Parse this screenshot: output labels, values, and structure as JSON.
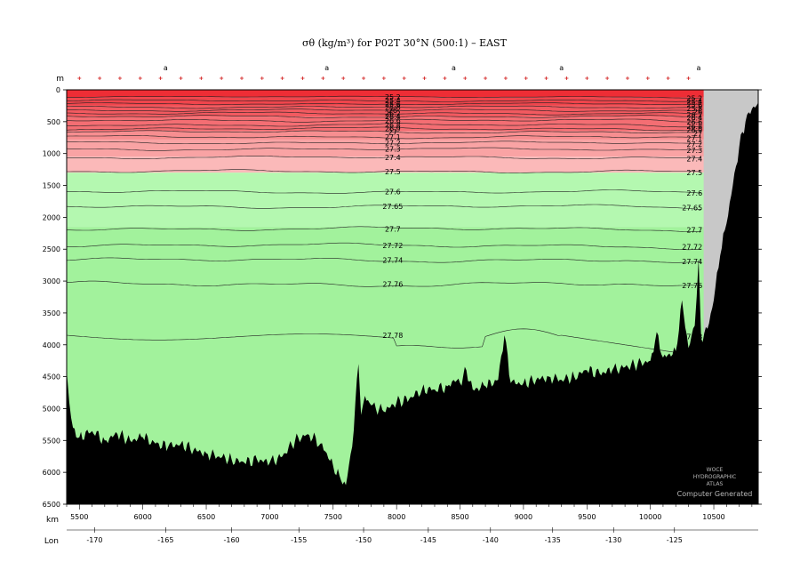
{
  "chart_data": {
    "type": "area",
    "title": "σθ (kg/m³) for P02T 30°N (500:1) – EAST",
    "ylabel": "m",
    "xlabel": "km",
    "lon_label": "Lon",
    "xlim": [
      5400,
      10850
    ],
    "ylim": [
      6500,
      0
    ],
    "x_ticks": [
      5500,
      6000,
      6500,
      7000,
      7500,
      8000,
      8500,
      9000,
      9500,
      10000,
      10500
    ],
    "y_ticks": [
      0,
      500,
      1000,
      1500,
      2000,
      2500,
      3000,
      3500,
      4000,
      4500,
      5000,
      5500,
      6000,
      6500
    ],
    "lon_ticks": [
      {
        "lon": -170,
        "km": 5620
      },
      {
        "lon": -165,
        "km": 6180
      },
      {
        "lon": -160,
        "km": 6700
      },
      {
        "lon": -155,
        "km": 7230
      },
      {
        "lon": -150,
        "km": 7740
      },
      {
        "lon": -145,
        "km": 8250
      },
      {
        "lon": -140,
        "km": 8740
      },
      {
        "lon": -135,
        "km": 9230
      },
      {
        "lon": -130,
        "km": 9710
      },
      {
        "lon": -125,
        "km": 10190
      }
    ],
    "top_labels": [
      {
        "text": "a",
        "km": 6180
      },
      {
        "text": "a",
        "km": 7450
      },
      {
        "text": "a",
        "km": 8450
      },
      {
        "text": "a",
        "km": 9300
      },
      {
        "text": "a",
        "km": 10380
      }
    ],
    "bands": [
      {
        "top": 0,
        "bottom": 120,
        "color": "#ee2d35"
      },
      {
        "top": 120,
        "bottom": 250,
        "color": "#f0454c"
      },
      {
        "top": 250,
        "bottom": 420,
        "color": "#f25a60"
      },
      {
        "top": 420,
        "bottom": 650,
        "color": "#f46e73"
      },
      {
        "top": 650,
        "bottom": 780,
        "color": "#f78e90"
      },
      {
        "top": 780,
        "bottom": 1050,
        "color": "#f9a3a4"
      },
      {
        "top": 1050,
        "bottom": 1300,
        "color": "#fbb9b9"
      },
      {
        "top": 1300,
        "bottom": 2150,
        "color": "#b4f8b0"
      },
      {
        "top": 2150,
        "bottom": 6500,
        "color": "#a2f29c"
      }
    ],
    "contours": [
      {
        "label": "25.2",
        "depth": 110,
        "amp": 10
      },
      {
        "label": "25.4",
        "depth": 170,
        "amp": 15
      },
      {
        "label": "25.6",
        "depth": 220,
        "amp": 15
      },
      {
        "label": "25.8",
        "depth": 270,
        "amp": 18
      },
      {
        "label": "26",
        "depth": 320,
        "amp": 18
      },
      {
        "label": "26.2",
        "depth": 370,
        "amp": 20
      },
      {
        "label": "26.4",
        "depth": 420,
        "amp": 20
      },
      {
        "label": "26.6",
        "depth": 480,
        "amp": 22
      },
      {
        "label": "26.8",
        "depth": 550,
        "amp": 22
      },
      {
        "label": "26.9",
        "depth": 610,
        "amp": 22
      },
      {
        "label": "27",
        "depth": 660,
        "amp": 22
      },
      {
        "label": "27.1",
        "depth": 740,
        "amp": 22
      },
      {
        "label": "27.2",
        "depth": 830,
        "amp": 20
      },
      {
        "label": "27.3",
        "depth": 930,
        "amp": 20
      },
      {
        "label": "27.4",
        "depth": 1060,
        "amp": 22
      },
      {
        "label": "27.5",
        "depth": 1280,
        "amp": 25
      },
      {
        "label": "27.6",
        "depth": 1600,
        "amp": 25
      },
      {
        "label": "27.65",
        "depth": 1830,
        "amp": 28
      },
      {
        "label": "27.7",
        "depth": 2180,
        "amp": 30
      },
      {
        "label": "27.72",
        "depth": 2440,
        "amp": 32
      },
      {
        "label": "27.74",
        "depth": 2670,
        "amp": 35
      },
      {
        "label": "27.76",
        "depth": 3050,
        "amp": 40
      },
      {
        "label": "27.78",
        "depth": 3850,
        "amp": 0
      }
    ],
    "bathymetry": [
      [
        5400,
        4400
      ],
      [
        5420,
        4900
      ],
      [
        5450,
        5300
      ],
      [
        5500,
        5450
      ],
      [
        5600,
        5350
      ],
      [
        5700,
        5500
      ],
      [
        5800,
        5400
      ],
      [
        5900,
        5500
      ],
      [
        6000,
        5450
      ],
      [
        6100,
        5550
      ],
      [
        6200,
        5600
      ],
      [
        6300,
        5550
      ],
      [
        6400,
        5650
      ],
      [
        6500,
        5700
      ],
      [
        6600,
        5750
      ],
      [
        6700,
        5800
      ],
      [
        6800,
        5850
      ],
      [
        6900,
        5800
      ],
      [
        7000,
        5850
      ],
      [
        7100,
        5750
      ],
      [
        7200,
        5500
      ],
      [
        7300,
        5400
      ],
      [
        7400,
        5550
      ],
      [
        7450,
        5700
      ],
      [
        7500,
        5900
      ],
      [
        7550,
        6050
      ],
      [
        7600,
        6200
      ],
      [
        7650,
        5600
      ],
      [
        7700,
        4300
      ],
      [
        7720,
        5100
      ],
      [
        7750,
        4800
      ],
      [
        7800,
        4950
      ],
      [
        7900,
        5050
      ],
      [
        8000,
        4900
      ],
      [
        8100,
        4850
      ],
      [
        8200,
        4700
      ],
      [
        8300,
        4700
      ],
      [
        8400,
        4650
      ],
      [
        8450,
        4550
      ],
      [
        8500,
        4600
      ],
      [
        8550,
        4400
      ],
      [
        8600,
        4700
      ],
      [
        8700,
        4650
      ],
      [
        8800,
        4550
      ],
      [
        8850,
        3850
      ],
      [
        8900,
        4600
      ],
      [
        9000,
        4600
      ],
      [
        9100,
        4550
      ],
      [
        9200,
        4500
      ],
      [
        9300,
        4550
      ],
      [
        9400,
        4500
      ],
      [
        9500,
        4400
      ],
      [
        9600,
        4450
      ],
      [
        9700,
        4400
      ],
      [
        9800,
        4350
      ],
      [
        9900,
        4300
      ],
      [
        10000,
        4250
      ],
      [
        10050,
        3800
      ],
      [
        10100,
        4200
      ],
      [
        10200,
        4100
      ],
      [
        10250,
        3300
      ],
      [
        10300,
        4050
      ],
      [
        10350,
        3700
      ],
      [
        10380,
        2650
      ],
      [
        10400,
        3900
      ],
      [
        10450,
        3750
      ],
      [
        10500,
        3300
      ],
      [
        10550,
        2600
      ],
      [
        10600,
        2100
      ],
      [
        10650,
        1500
      ],
      [
        10700,
        900
      ],
      [
        10750,
        500
      ],
      [
        10800,
        300
      ],
      [
        10850,
        200
      ]
    ],
    "gray_region_from_km": 10420,
    "credit": {
      "line1": "WOCE",
      "line2": "HYDROGRAPHIC",
      "line3": "ATLAS",
      "line4": "Computer Generated"
    },
    "colors": {
      "bathymetry": "#000000",
      "no_data": "#c8c8c8",
      "tick_marks_top": "#cc0000",
      "contour": "#222222"
    }
  }
}
